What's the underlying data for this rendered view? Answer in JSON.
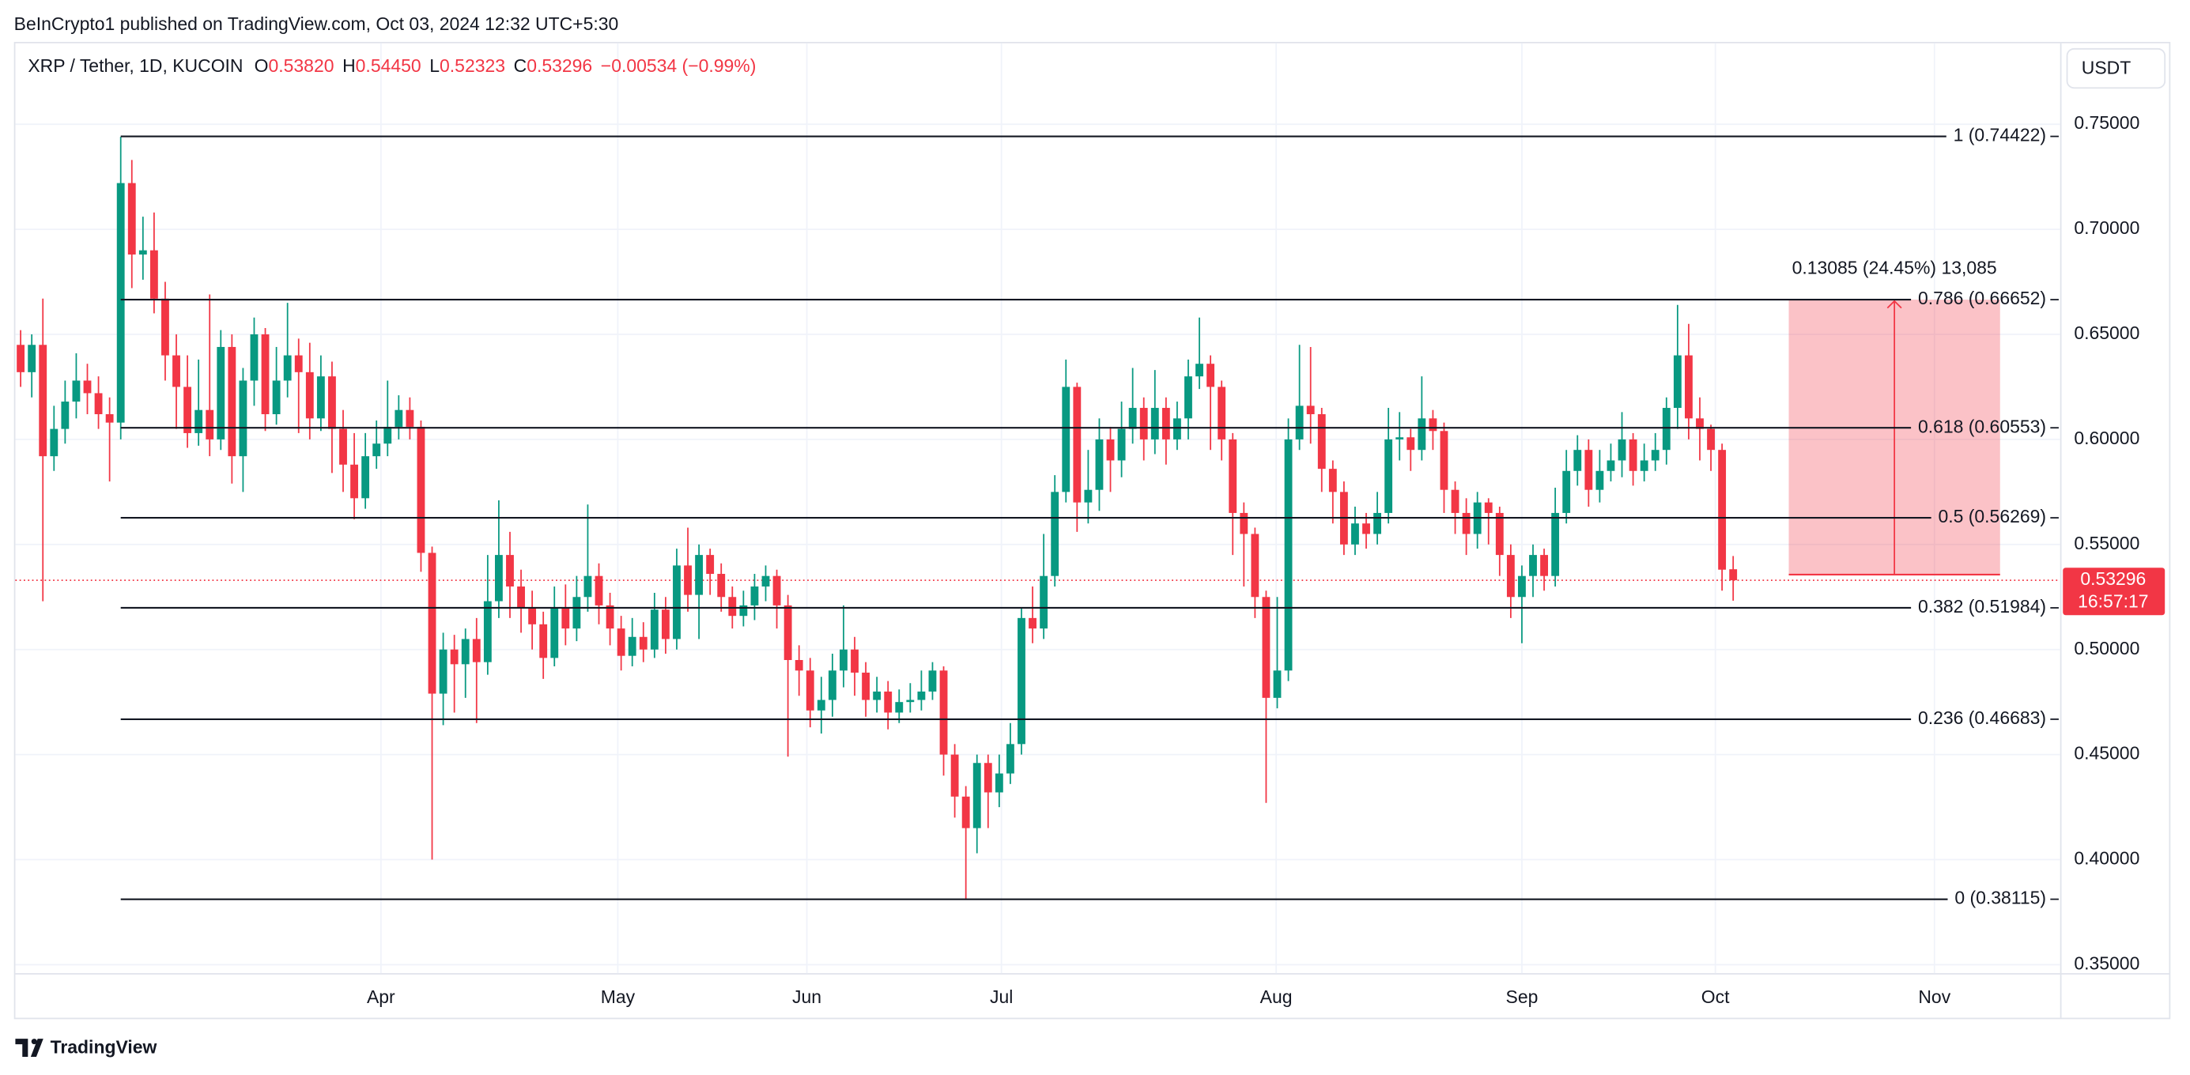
{
  "header": {
    "published": "BeInCrypto1 published on TradingView.com, Oct 03, 2024 12:32 UTC+5:30"
  },
  "branding": "TradingView",
  "currency_button": "USDT",
  "chart_data": {
    "type": "candlestick",
    "symbol": "XRP / Tether, 1D, KUCOIN",
    "legend": [
      {
        "label": "O",
        "value": "0.53820"
      },
      {
        "label": "H",
        "value": "0.54450"
      },
      {
        "label": "L",
        "value": "0.52323"
      },
      {
        "label": "C",
        "value": "0.53296"
      }
    ],
    "change": "−0.00534 (−0.99%)",
    "up_color": "#089981",
    "down_color": "#f23645",
    "ohlc": [
      [
        0.645,
        0.652,
        0.625,
        0.632
      ],
      [
        0.632,
        0.65,
        0.62,
        0.645
      ],
      [
        0.645,
        0.667,
        0.523,
        0.592
      ],
      [
        0.592,
        0.616,
        0.585,
        0.605
      ],
      [
        0.605,
        0.628,
        0.598,
        0.618
      ],
      [
        0.618,
        0.641,
        0.61,
        0.628
      ],
      [
        0.628,
        0.636,
        0.612,
        0.622
      ],
      [
        0.622,
        0.63,
        0.605,
        0.612
      ],
      [
        0.612,
        0.62,
        0.58,
        0.608
      ],
      [
        0.608,
        0.744,
        0.6,
        0.722
      ],
      [
        0.722,
        0.733,
        0.672,
        0.688
      ],
      [
        0.688,
        0.706,
        0.676,
        0.69
      ],
      [
        0.69,
        0.708,
        0.66,
        0.667
      ],
      [
        0.667,
        0.675,
        0.628,
        0.64
      ],
      [
        0.64,
        0.65,
        0.605,
        0.625
      ],
      [
        0.625,
        0.64,
        0.596,
        0.603
      ],
      [
        0.603,
        0.638,
        0.597,
        0.614
      ],
      [
        0.614,
        0.669,
        0.592,
        0.6
      ],
      [
        0.6,
        0.652,
        0.595,
        0.644
      ],
      [
        0.644,
        0.65,
        0.579,
        0.592
      ],
      [
        0.592,
        0.634,
        0.575,
        0.628
      ],
      [
        0.628,
        0.658,
        0.616,
        0.65
      ],
      [
        0.65,
        0.653,
        0.604,
        0.612
      ],
      [
        0.612,
        0.644,
        0.607,
        0.628
      ],
      [
        0.628,
        0.665,
        0.62,
        0.64
      ],
      [
        0.64,
        0.648,
        0.603,
        0.632
      ],
      [
        0.632,
        0.646,
        0.6,
        0.61
      ],
      [
        0.61,
        0.64,
        0.604,
        0.63
      ],
      [
        0.63,
        0.637,
        0.584,
        0.605
      ],
      [
        0.605,
        0.614,
        0.575,
        0.588
      ],
      [
        0.588,
        0.603,
        0.562,
        0.572
      ],
      [
        0.572,
        0.603,
        0.567,
        0.592
      ],
      [
        0.592,
        0.609,
        0.586,
        0.598
      ],
      [
        0.598,
        0.628,
        0.592,
        0.606
      ],
      [
        0.606,
        0.621,
        0.6,
        0.614
      ],
      [
        0.614,
        0.62,
        0.6,
        0.606
      ],
      [
        0.606,
        0.609,
        0.537,
        0.546
      ],
      [
        0.546,
        0.549,
        0.4,
        0.479
      ],
      [
        0.479,
        0.508,
        0.464,
        0.5
      ],
      [
        0.5,
        0.507,
        0.47,
        0.493
      ],
      [
        0.493,
        0.51,
        0.477,
        0.505
      ],
      [
        0.505,
        0.515,
        0.465,
        0.494
      ],
      [
        0.494,
        0.545,
        0.488,
        0.523
      ],
      [
        0.523,
        0.571,
        0.515,
        0.545
      ],
      [
        0.545,
        0.556,
        0.515,
        0.53
      ],
      [
        0.53,
        0.538,
        0.508,
        0.52
      ],
      [
        0.52,
        0.528,
        0.5,
        0.512
      ],
      [
        0.512,
        0.518,
        0.486,
        0.496
      ],
      [
        0.496,
        0.53,
        0.492,
        0.52
      ],
      [
        0.52,
        0.531,
        0.502,
        0.51
      ],
      [
        0.51,
        0.535,
        0.504,
        0.525
      ],
      [
        0.525,
        0.569,
        0.518,
        0.535
      ],
      [
        0.535,
        0.541,
        0.512,
        0.521
      ],
      [
        0.521,
        0.527,
        0.502,
        0.51
      ],
      [
        0.51,
        0.516,
        0.49,
        0.497
      ],
      [
        0.497,
        0.515,
        0.492,
        0.506
      ],
      [
        0.506,
        0.513,
        0.494,
        0.5
      ],
      [
        0.5,
        0.527,
        0.496,
        0.519
      ],
      [
        0.519,
        0.525,
        0.498,
        0.505
      ],
      [
        0.505,
        0.548,
        0.5,
        0.54
      ],
      [
        0.54,
        0.558,
        0.518,
        0.526
      ],
      [
        0.526,
        0.55,
        0.505,
        0.545
      ],
      [
        0.545,
        0.548,
        0.526,
        0.536
      ],
      [
        0.536,
        0.541,
        0.518,
        0.525
      ],
      [
        0.525,
        0.53,
        0.51,
        0.516
      ],
      [
        0.516,
        0.528,
        0.511,
        0.521
      ],
      [
        0.521,
        0.536,
        0.514,
        0.53
      ],
      [
        0.53,
        0.54,
        0.523,
        0.535
      ],
      [
        0.535,
        0.538,
        0.51,
        0.521
      ],
      [
        0.521,
        0.526,
        0.449,
        0.495
      ],
      [
        0.495,
        0.502,
        0.478,
        0.49
      ],
      [
        0.49,
        0.496,
        0.463,
        0.471
      ],
      [
        0.471,
        0.487,
        0.46,
        0.476
      ],
      [
        0.476,
        0.498,
        0.468,
        0.49
      ],
      [
        0.49,
        0.521,
        0.482,
        0.5
      ],
      [
        0.5,
        0.506,
        0.478,
        0.489
      ],
      [
        0.489,
        0.494,
        0.468,
        0.476
      ],
      [
        0.476,
        0.487,
        0.47,
        0.48
      ],
      [
        0.48,
        0.485,
        0.462,
        0.47
      ],
      [
        0.47,
        0.481,
        0.465,
        0.475
      ],
      [
        0.475,
        0.484,
        0.47,
        0.476
      ],
      [
        0.476,
        0.49,
        0.471,
        0.48
      ],
      [
        0.48,
        0.494,
        0.476,
        0.49
      ],
      [
        0.49,
        0.492,
        0.44,
        0.45
      ],
      [
        0.45,
        0.455,
        0.42,
        0.43
      ],
      [
        0.43,
        0.435,
        0.381,
        0.415
      ],
      [
        0.415,
        0.45,
        0.403,
        0.446
      ],
      [
        0.446,
        0.45,
        0.415,
        0.432
      ],
      [
        0.432,
        0.45,
        0.425,
        0.441
      ],
      [
        0.441,
        0.465,
        0.436,
        0.455
      ],
      [
        0.455,
        0.52,
        0.45,
        0.515
      ],
      [
        0.515,
        0.53,
        0.503,
        0.51
      ],
      [
        0.51,
        0.555,
        0.505,
        0.535
      ],
      [
        0.535,
        0.583,
        0.53,
        0.575
      ],
      [
        0.575,
        0.638,
        0.57,
        0.625
      ],
      [
        0.625,
        0.627,
        0.556,
        0.57
      ],
      [
        0.57,
        0.595,
        0.56,
        0.576
      ],
      [
        0.576,
        0.61,
        0.566,
        0.6
      ],
      [
        0.6,
        0.606,
        0.575,
        0.59
      ],
      [
        0.59,
        0.618,
        0.582,
        0.605
      ],
      [
        0.605,
        0.634,
        0.598,
        0.615
      ],
      [
        0.615,
        0.62,
        0.59,
        0.6
      ],
      [
        0.6,
        0.633,
        0.593,
        0.615
      ],
      [
        0.615,
        0.62,
        0.588,
        0.6
      ],
      [
        0.6,
        0.618,
        0.595,
        0.61
      ],
      [
        0.61,
        0.638,
        0.6,
        0.63
      ],
      [
        0.63,
        0.658,
        0.624,
        0.636
      ],
      [
        0.636,
        0.64,
        0.595,
        0.625
      ],
      [
        0.625,
        0.628,
        0.59,
        0.6
      ],
      [
        0.6,
        0.603,
        0.545,
        0.565
      ],
      [
        0.565,
        0.57,
        0.53,
        0.555
      ],
      [
        0.555,
        0.558,
        0.515,
        0.525
      ],
      [
        0.525,
        0.528,
        0.427,
        0.477
      ],
      [
        0.477,
        0.525,
        0.472,
        0.49
      ],
      [
        0.49,
        0.61,
        0.485,
        0.6
      ],
      [
        0.6,
        0.645,
        0.595,
        0.616
      ],
      [
        0.616,
        0.644,
        0.598,
        0.612
      ],
      [
        0.612,
        0.615,
        0.575,
        0.586
      ],
      [
        0.586,
        0.59,
        0.56,
        0.575
      ],
      [
        0.575,
        0.58,
        0.545,
        0.55
      ],
      [
        0.55,
        0.568,
        0.545,
        0.56
      ],
      [
        0.56,
        0.565,
        0.548,
        0.555
      ],
      [
        0.555,
        0.575,
        0.55,
        0.565
      ],
      [
        0.565,
        0.615,
        0.56,
        0.6
      ],
      [
        0.6,
        0.613,
        0.59,
        0.601
      ],
      [
        0.601,
        0.605,
        0.585,
        0.595
      ],
      [
        0.595,
        0.63,
        0.59,
        0.61
      ],
      [
        0.61,
        0.614,
        0.595,
        0.604
      ],
      [
        0.604,
        0.608,
        0.565,
        0.576
      ],
      [
        0.576,
        0.58,
        0.555,
        0.565
      ],
      [
        0.565,
        0.572,
        0.545,
        0.555
      ],
      [
        0.555,
        0.575,
        0.548,
        0.57
      ],
      [
        0.57,
        0.572,
        0.55,
        0.565
      ],
      [
        0.565,
        0.568,
        0.535,
        0.545
      ],
      [
        0.545,
        0.55,
        0.515,
        0.525
      ],
      [
        0.525,
        0.54,
        0.503,
        0.535
      ],
      [
        0.535,
        0.55,
        0.525,
        0.545
      ],
      [
        0.545,
        0.548,
        0.528,
        0.535
      ],
      [
        0.535,
        0.577,
        0.53,
        0.565
      ],
      [
        0.565,
        0.595,
        0.56,
        0.585
      ],
      [
        0.585,
        0.602,
        0.578,
        0.595
      ],
      [
        0.595,
        0.6,
        0.568,
        0.576
      ],
      [
        0.576,
        0.595,
        0.57,
        0.585
      ],
      [
        0.585,
        0.598,
        0.58,
        0.59
      ],
      [
        0.59,
        0.613,
        0.582,
        0.6
      ],
      [
        0.6,
        0.603,
        0.578,
        0.585
      ],
      [
        0.585,
        0.598,
        0.58,
        0.59
      ],
      [
        0.59,
        0.603,
        0.585,
        0.595
      ],
      [
        0.595,
        0.62,
        0.588,
        0.615
      ],
      [
        0.615,
        0.664,
        0.605,
        0.64
      ],
      [
        0.64,
        0.655,
        0.6,
        0.61
      ],
      [
        0.61,
        0.62,
        0.59,
        0.605
      ],
      [
        0.605,
        0.607,
        0.585,
        0.595
      ],
      [
        0.595,
        0.598,
        0.528,
        0.538
      ],
      [
        0.5382,
        0.5445,
        0.52323,
        0.53296
      ]
    ],
    "xlim": [
      -0.6,
      183.4
    ],
    "xticks": [
      {
        "value": 32.4,
        "label": "Apr"
      },
      {
        "value": 53.7,
        "label": "May"
      },
      {
        "value": 70.7,
        "label": "Jun"
      },
      {
        "value": 88.2,
        "label": "Jul"
      },
      {
        "value": 112.9,
        "label": "Aug"
      },
      {
        "value": 135.0,
        "label": "Sep"
      },
      {
        "value": 152.4,
        "label": "Oct"
      },
      {
        "value": 172.1,
        "label": "Nov"
      }
    ],
    "ylim": [
      0.346,
      0.7892
    ],
    "yticks": [
      {
        "value": 0.35,
        "label": "0.35000"
      },
      {
        "value": 0.4,
        "label": "0.40000"
      },
      {
        "value": 0.45,
        "label": "0.45000"
      },
      {
        "value": 0.5,
        "label": "0.50000"
      },
      {
        "value": 0.55,
        "label": "0.55000"
      },
      {
        "value": 0.6,
        "label": "0.60000"
      },
      {
        "value": 0.65,
        "label": "0.65000"
      },
      {
        "value": 0.7,
        "label": "0.70000"
      },
      {
        "value": 0.75,
        "label": "0.75000"
      }
    ],
    "grid": true,
    "last_price": {
      "value": 0.53296,
      "label": "0.53296",
      "countdown": "16:57:17"
    },
    "fib_start": 9,
    "fib_levels": [
      {
        "value": 0.74422,
        "label": "1 (0.74422)"
      },
      {
        "value": 0.66652,
        "label": "0.786 (0.66652)"
      },
      {
        "value": 0.60553,
        "label": "0.618 (0.60553)"
      },
      {
        "value": 0.56269,
        "label": "0.5 (0.56269)"
      },
      {
        "value": 0.51984,
        "label": "0.382 (0.51984)"
      },
      {
        "value": 0.46683,
        "label": "0.236 (0.46683)"
      },
      {
        "value": 0.38115,
        "label": "0 (0.38115)"
      }
    ],
    "measure": {
      "label": "0.13085 (24.45%) 13,085",
      "x": [
        159,
        178
      ],
      "top": 0.66652,
      "bottom": 0.53567,
      "color": "#f23645"
    }
  }
}
